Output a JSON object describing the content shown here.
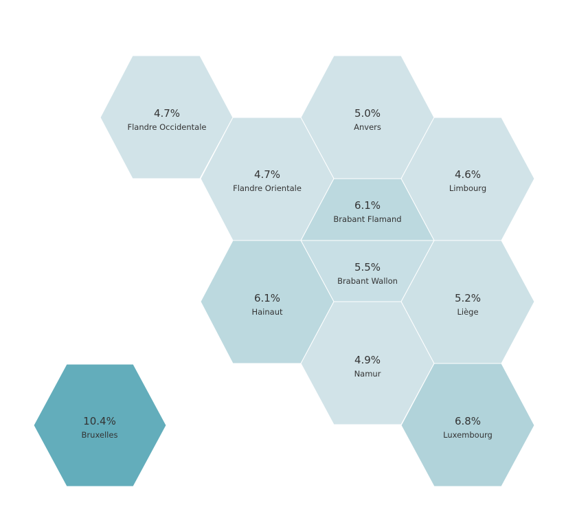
{
  "map": {
    "regions": [
      {
        "id": "flandre-occidentale",
        "name": "Flandre Occidentale",
        "value": "4.7%",
        "color": "#d1e3e8"
      },
      {
        "id": "anvers",
        "name": "Anvers",
        "value": "5.0%",
        "color": "#d1e3e8"
      },
      {
        "id": "flandre-orientale",
        "name": "Flandre Orientale",
        "value": "4.7%",
        "color": "#d1e3e8"
      },
      {
        "id": "limbourg",
        "name": "Limbourg",
        "value": "4.6%",
        "color": "#d1e3e8"
      },
      {
        "id": "brabant-flamand",
        "name": "Brabant Flamand",
        "value": "6.1%",
        "color": "#bcd9df"
      },
      {
        "id": "brabant-wallon",
        "name": "Brabant Wallon",
        "value": "5.5%",
        "color": "#c8dfe5"
      },
      {
        "id": "hainaut",
        "name": "Hainaut",
        "value": "6.1%",
        "color": "#bcd9df"
      },
      {
        "id": "liege",
        "name": "Liège",
        "value": "5.2%",
        "color": "#cde1e6"
      },
      {
        "id": "namur",
        "name": "Namur",
        "value": "4.9%",
        "color": "#d1e3e8"
      },
      {
        "id": "luxembourg",
        "name": "Luxembourg",
        "value": "6.8%",
        "color": "#b1d3da"
      },
      {
        "id": "bruxelles",
        "name": "Bruxelles",
        "value": "10.4%",
        "color": "#63adbb"
      }
    ]
  }
}
